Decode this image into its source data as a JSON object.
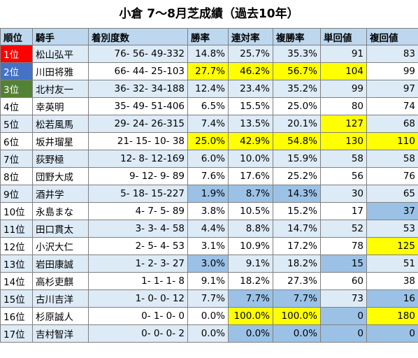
{
  "title": "小倉 7〜8月芝成績（過去10年）",
  "headers": [
    "順位",
    "騎手",
    "着別度数",
    "勝率",
    "連対率",
    "複勝率",
    "単回値",
    "複回値"
  ],
  "colors": {
    "rank1": "#ff0000",
    "rank2": "#4472c4",
    "rank3": "#548235",
    "highlight_yellow": "#ffff00",
    "highlight_blue": "#9bc2e6",
    "row_alt": "#ddebf7",
    "header": "#bdd7ee"
  },
  "rows": [
    {
      "rank": "1位",
      "name": "松山弘平",
      "record": "76- 56- 49-332",
      "win": "14.8%",
      "top2": "25.7%",
      "top3": "35.3%",
      "tan": "91",
      "fuku": "83",
      "hl": {}
    },
    {
      "rank": "2位",
      "name": "川田将雅",
      "record": "66- 44- 25-103",
      "win": "27.7%",
      "top2": "46.2%",
      "top3": "56.7%",
      "tan": "104",
      "fuku": "99",
      "hl": {
        "win": "y",
        "top2": "y",
        "top3": "y",
        "tan": "y"
      }
    },
    {
      "rank": "3位",
      "name": "北村友一",
      "record": "36- 32- 34-188",
      "win": "12.4%",
      "top2": "23.4%",
      "top3": "35.2%",
      "tan": "99",
      "fuku": "97",
      "hl": {}
    },
    {
      "rank": "4位",
      "name": "幸英明",
      "record": "35- 49- 51-406",
      "win": "6.5%",
      "top2": "15.5%",
      "top3": "25.0%",
      "tan": "80",
      "fuku": "74",
      "hl": {}
    },
    {
      "rank": "5位",
      "name": "松若風馬",
      "record": "29- 24- 26-315",
      "win": "7.4%",
      "top2": "13.5%",
      "top3": "20.1%",
      "tan": "127",
      "fuku": "68",
      "hl": {
        "tan": "y"
      }
    },
    {
      "rank": "6位",
      "name": "坂井瑠星",
      "record": "21- 15- 10- 38",
      "win": "25.0%",
      "top2": "42.9%",
      "top3": "54.8%",
      "tan": "130",
      "fuku": "110",
      "hl": {
        "win": "y",
        "top2": "y",
        "top3": "y",
        "tan": "y",
        "fuku": "y"
      }
    },
    {
      "rank": "7位",
      "name": "荻野極",
      "record": "12- 8- 12-169",
      "win": "6.0%",
      "top2": "10.0%",
      "top3": "15.9%",
      "tan": "58",
      "fuku": "58",
      "hl": {}
    },
    {
      "rank": "8位",
      "name": "団野大成",
      "record": "9- 12- 9- 89",
      "win": "7.6%",
      "top2": "17.6%",
      "top3": "25.2%",
      "tan": "56",
      "fuku": "76",
      "hl": {}
    },
    {
      "rank": "9位",
      "name": "酒井学",
      "record": "5- 18- 15-227",
      "win": "1.9%",
      "top2": "8.7%",
      "top3": "14.3%",
      "tan": "30",
      "fuku": "65",
      "hl": {
        "win": "b",
        "top2": "b",
        "top3": "b"
      }
    },
    {
      "rank": "10位",
      "name": "永島まな",
      "record": "4- 7- 5- 89",
      "win": "3.8%",
      "top2": "10.5%",
      "top3": "15.2%",
      "tan": "17",
      "fuku": "37",
      "hl": {
        "fuku": "b"
      }
    },
    {
      "rank": "11位",
      "name": "田口貫太",
      "record": "3- 3- 4- 58",
      "win": "4.4%",
      "top2": "8.8%",
      "top3": "14.7%",
      "tan": "52",
      "fuku": "53",
      "hl": {}
    },
    {
      "rank": "12位",
      "name": "小沢大仁",
      "record": "2- 5- 4- 53",
      "win": "3.1%",
      "top2": "10.9%",
      "top3": "17.2%",
      "tan": "78",
      "fuku": "125",
      "hl": {
        "fuku": "y"
      }
    },
    {
      "rank": "13位",
      "name": "岩田康誠",
      "record": "1- 2- 3- 27",
      "win": "3.0%",
      "top2": "9.1%",
      "top3": "18.2%",
      "tan": "15",
      "fuku": "51",
      "hl": {
        "win": "b",
        "tan": "b"
      }
    },
    {
      "rank": "14位",
      "name": "高杉吏麒",
      "record": "1- 1- 1- 8",
      "win": "9.1%",
      "top2": "18.2%",
      "top3": "27.3%",
      "tan": "60",
      "fuku": "38",
      "hl": {}
    },
    {
      "rank": "15位",
      "name": "古川吉洋",
      "record": "1- 0- 0- 12",
      "win": "7.7%",
      "top2": "7.7%",
      "top3": "7.7%",
      "tan": "73",
      "fuku": "16",
      "hl": {
        "top2": "b",
        "top3": "b",
        "fuku": "b"
      }
    },
    {
      "rank": "16位",
      "name": "杉原誠人",
      "record": "0- 1- 0- 0",
      "win": "0.0%",
      "top2": "100.0%",
      "top3": "100.0%",
      "tan": "0",
      "fuku": "180",
      "hl": {
        "top2": "y",
        "top3": "y",
        "tan": "b",
        "fuku": "y"
      }
    },
    {
      "rank": "17位",
      "name": "吉村智洋",
      "record": "0- 0- 0- 2",
      "win": "0.0%",
      "top2": "0.0%",
      "top3": "0.0%",
      "tan": "0",
      "fuku": "0",
      "hl": {
        "top2": "b",
        "top3": "b",
        "tan": "b",
        "fuku": "b"
      }
    }
  ]
}
